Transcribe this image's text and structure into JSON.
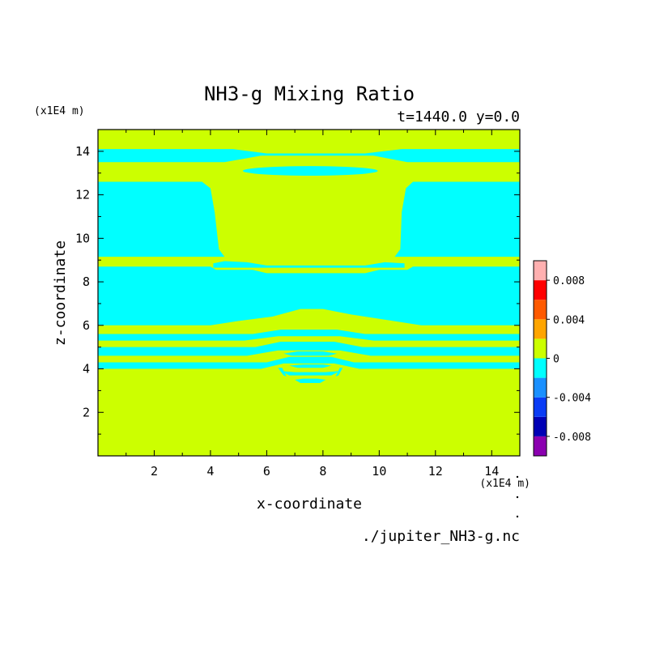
{
  "chart_data": {
    "type": "heatmap",
    "title": "NH3-g Mixing Ratio",
    "subtitle": "t=1440.0 y=0.0",
    "xlabel": "x-coordinate",
    "ylabel": "z-coordinate",
    "x_unit": "(x1E4 m)",
    "y_unit": "(x1E4 m)",
    "footer": "./jupiter_NH3-g.nc",
    "xlim": [
      0,
      15
    ],
    "ylim": [
      0,
      15
    ],
    "x_ticks": [
      2,
      4,
      6,
      8,
      10,
      12,
      14
    ],
    "y_ticks": [
      2,
      4,
      6,
      8,
      10,
      12,
      14
    ],
    "grid": false,
    "colorbar": {
      "placement": "right",
      "levels": [
        -0.01,
        -0.008,
        -0.006,
        -0.004,
        -0.002,
        0.0,
        0.002,
        0.004,
        0.006,
        0.008,
        0.01
      ],
      "colors": [
        "#8b00b0",
        "#0000b5",
        "#0a3cf5",
        "#1a90ff",
        "#00ffff",
        "#ccff00",
        "#ffa500",
        "#ff5a00",
        "#ff0000",
        "#ffb0b0"
      ],
      "tick_values": [
        0.008,
        0.004,
        0,
        -0.004,
        -0.008
      ],
      "tick_labels": [
        "0.008",
        "0.004",
        "0",
        "-0.004",
        "-0.008"
      ]
    },
    "field": {
      "background_level": "0 to 0.002",
      "background_color": "#ccff00",
      "negative_regions_level": "-0.002 to 0",
      "negative_color": "#00ffff",
      "negative_regions": [
        {
          "name": "upper band",
          "x": [
            0,
            15
          ],
          "z": [
            13.5,
            14.1
          ]
        },
        {
          "name": "upper lens",
          "x": [
            5.2,
            10.2
          ],
          "z": [
            12.9,
            13.3
          ]
        },
        {
          "name": "left upper block",
          "x": [
            0,
            4.3
          ],
          "z": [
            9.2,
            12.6
          ]
        },
        {
          "name": "right upper block",
          "x": [
            10.8,
            15
          ],
          "z": [
            9.2,
            12.6
          ]
        },
        {
          "name": "middle band",
          "x": [
            0,
            15
          ],
          "z": [
            6.0,
            8.7
          ]
        },
        {
          "name": "lower band 1",
          "x": [
            0,
            15
          ],
          "z": [
            5.3,
            5.6
          ]
        },
        {
          "name": "lower band 2",
          "x": [
            0,
            15
          ],
          "z": [
            4.6,
            5.0
          ]
        },
        {
          "name": "lower band 3",
          "x": [
            0,
            15
          ],
          "z": [
            4.0,
            4.3
          ]
        }
      ]
    }
  }
}
